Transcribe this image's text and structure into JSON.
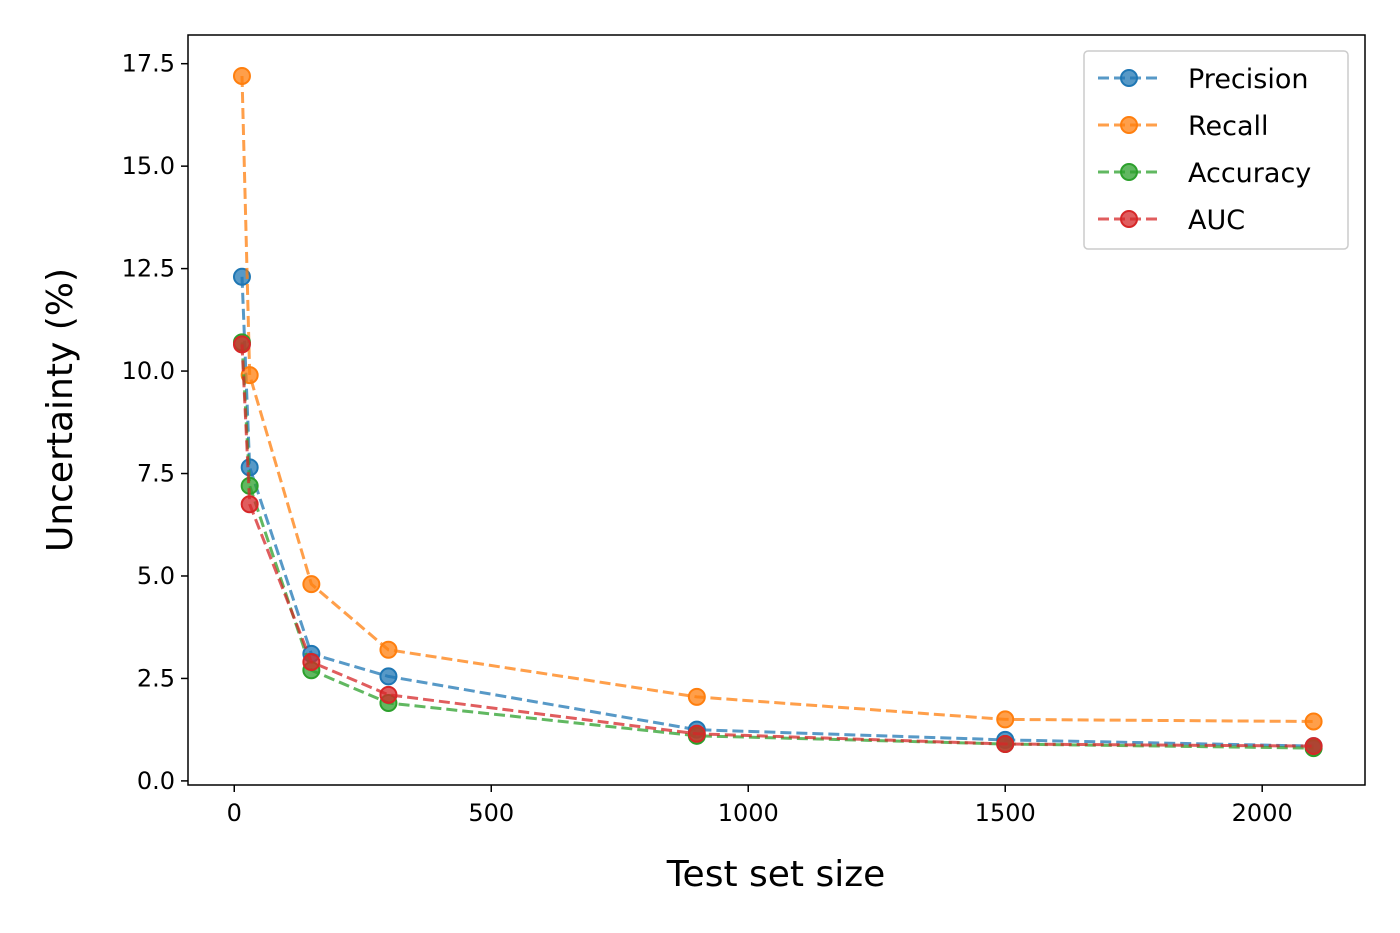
{
  "chart_data": {
    "type": "line",
    "xlabel": "Test set size",
    "ylabel": "Uncertainty (%)",
    "xlim": [
      -90,
      2200
    ],
    "ylim": [
      -0.1,
      18.2
    ],
    "xticks": [
      0,
      500,
      1000,
      1500,
      2000
    ],
    "xtick_labels": [
      "0",
      "500",
      "1000",
      "1500",
      "2000"
    ],
    "yticks": [
      0,
      2.5,
      5,
      7.5,
      10,
      12.5,
      15,
      17.5
    ],
    "ytick_labels": [
      "0.0",
      "2.5",
      "5.0",
      "7.5",
      "10.0",
      "12.5",
      "15.0",
      "17.5"
    ],
    "grid": false,
    "legend_position": "top-right",
    "line_style": "dashed",
    "marker": "circle",
    "x": [
      15,
      30,
      150,
      300,
      900,
      1500,
      2100
    ],
    "series": [
      {
        "name": "Precision",
        "color": "#1f77b4",
        "values": [
          12.3,
          7.65,
          3.1,
          2.55,
          1.25,
          1.0,
          0.85
        ]
      },
      {
        "name": "Recall",
        "color": "#ff7f0e",
        "values": [
          17.2,
          9.9,
          4.8,
          3.2,
          2.05,
          1.5,
          1.45
        ]
      },
      {
        "name": "Accuracy",
        "color": "#2ca02c",
        "values": [
          10.7,
          7.2,
          2.7,
          1.9,
          1.1,
          0.9,
          0.8
        ]
      },
      {
        "name": "AUC",
        "color": "#d62728",
        "values": [
          10.65,
          6.75,
          2.9,
          2.1,
          1.15,
          0.9,
          0.85
        ]
      }
    ]
  }
}
